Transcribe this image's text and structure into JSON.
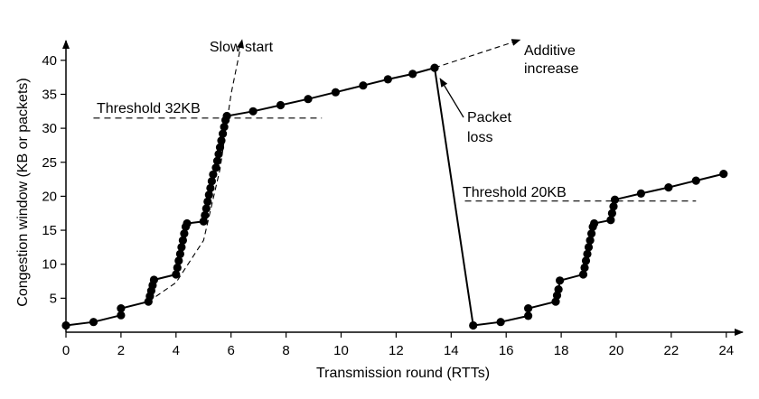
{
  "chart_data": {
    "type": "line",
    "xlabel": "Transmission round (RTTs)",
    "ylabel": "Congestion window (KB or packets)",
    "xlim": [
      0,
      25
    ],
    "ylim": [
      0,
      43
    ],
    "x_ticks": [
      0,
      2,
      4,
      6,
      8,
      10,
      12,
      14,
      16,
      18,
      20,
      22,
      24
    ],
    "y_ticks": [
      5,
      10,
      15,
      20,
      25,
      30,
      35,
      40
    ],
    "grid": false,
    "series": [
      {
        "style": "solid-with-points",
        "points": [
          [
            0,
            1
          ],
          [
            1,
            1.5
          ],
          [
            2,
            2.5
          ],
          [
            2,
            3.5
          ],
          [
            3,
            4.5
          ],
          [
            3.05,
            5.3
          ],
          [
            3.1,
            6.1
          ],
          [
            3.15,
            6.9
          ],
          [
            3.2,
            7.7
          ],
          [
            4,
            8.5
          ],
          [
            4.05,
            9.5
          ],
          [
            4.1,
            10.5
          ],
          [
            4.15,
            11.5
          ],
          [
            4.2,
            12.5
          ],
          [
            4.25,
            13.5
          ],
          [
            4.3,
            14.5
          ],
          [
            4.35,
            15.5
          ],
          [
            4.4,
            16
          ],
          [
            5,
            16.3
          ],
          [
            5.05,
            17.2
          ],
          [
            5.1,
            18.2
          ],
          [
            5.15,
            19.2
          ],
          [
            5.2,
            20.2
          ],
          [
            5.25,
            21.2
          ],
          [
            5.3,
            22.2
          ],
          [
            5.35,
            23.2
          ],
          [
            5.45,
            24.2
          ],
          [
            5.5,
            25.2
          ],
          [
            5.55,
            26.2
          ],
          [
            5.6,
            27.2
          ],
          [
            5.65,
            28.2
          ],
          [
            5.7,
            29.2
          ],
          [
            5.75,
            30.2
          ],
          [
            5.8,
            31.2
          ],
          [
            5.85,
            31.8
          ],
          [
            6.8,
            32.5
          ],
          [
            7.8,
            33.4
          ],
          [
            8.8,
            34.3
          ],
          [
            9.8,
            35.3
          ],
          [
            10.8,
            36.3
          ],
          [
            11.7,
            37.2
          ],
          [
            12.6,
            38
          ],
          [
            13.4,
            38.9
          ],
          [
            14.8,
            1
          ],
          [
            15.8,
            1.5
          ],
          [
            16.8,
            2.4
          ],
          [
            16.8,
            3.5
          ],
          [
            17.8,
            4.5
          ],
          [
            17.85,
            5.4
          ],
          [
            17.9,
            6.3
          ],
          [
            17.95,
            7.6
          ],
          [
            18.8,
            8.5
          ],
          [
            18.85,
            9.5
          ],
          [
            18.9,
            10.5
          ],
          [
            18.95,
            11.5
          ],
          [
            19,
            12.5
          ],
          [
            19.05,
            13.5
          ],
          [
            19.1,
            14.5
          ],
          [
            19.15,
            15.5
          ],
          [
            19.2,
            16
          ],
          [
            19.8,
            16.5
          ],
          [
            19.85,
            17.5
          ],
          [
            19.9,
            18.5
          ],
          [
            19.95,
            19.5
          ],
          [
            20.9,
            20.4
          ],
          [
            21.9,
            21.3
          ],
          [
            22.9,
            22.3
          ],
          [
            23.9,
            23.3
          ]
        ]
      },
      {
        "style": "dashed",
        "points": [
          [
            3,
            4.5
          ],
          [
            4,
            7.3
          ],
          [
            5,
            13.5
          ],
          [
            5.6,
            24
          ],
          [
            6,
            35
          ],
          [
            6.4,
            43
          ]
        ]
      },
      {
        "style": "dashed",
        "points": [
          [
            13.4,
            38.9
          ],
          [
            16.5,
            43
          ]
        ]
      }
    ],
    "thresholds": [
      {
        "label": "Threshold 32KB",
        "y": 31.5,
        "x_start": 1,
        "x_end": 9.3
      },
      {
        "label": "Threshold 20KB",
        "y": 19.3,
        "x_start": 14.5,
        "x_end": 22.9
      }
    ],
    "annotations": [
      {
        "text": "Slow start",
        "anchor_x": 6.3,
        "anchor_y": 42
      },
      {
        "text": "Additive",
        "text2": "increase",
        "anchor_x": 16.5,
        "anchor_y": 42.5
      },
      {
        "text": "Packet",
        "text2": "loss",
        "anchor_x": 13.6,
        "anchor_y": 37.3
      }
    ]
  }
}
